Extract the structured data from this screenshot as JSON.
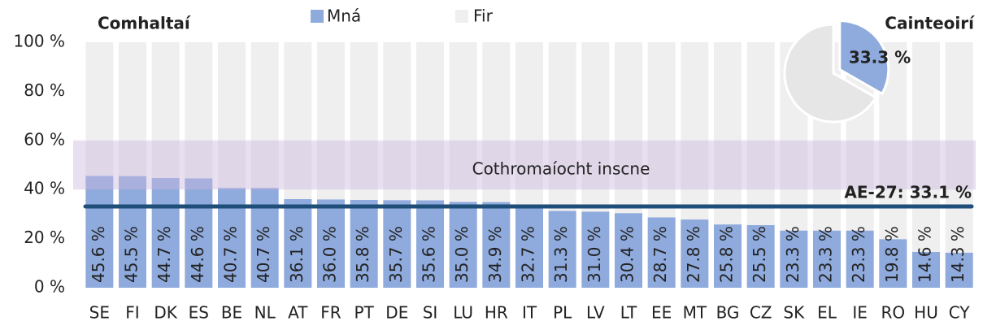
{
  "chart_data": [
    {
      "type": "bar",
      "stacked": true,
      "title": "Comhaltaí",
      "categories": [
        "SE",
        "FI",
        "DK",
        "ES",
        "BE",
        "NL",
        "AT",
        "FR",
        "PT",
        "DE",
        "SI",
        "LU",
        "HR",
        "IT",
        "PL",
        "LV",
        "LT",
        "EE",
        "MT",
        "BG",
        "CZ",
        "SK",
        "EL",
        "IE",
        "RO",
        "HU",
        "CY"
      ],
      "series": [
        {
          "name": "Mná",
          "color": "#8faadc",
          "values": [
            45.6,
            45.5,
            44.7,
            44.6,
            40.7,
            40.7,
            36.1,
            36.0,
            35.8,
            35.7,
            35.6,
            35.0,
            34.9,
            32.7,
            31.3,
            31.0,
            30.4,
            28.7,
            27.8,
            25.8,
            25.5,
            23.3,
            23.3,
            23.3,
            19.8,
            14.6,
            14.3
          ],
          "value_labels": [
            "45.6 %",
            "45.5 %",
            "44.7 %",
            "44.6 %",
            "40.7 %",
            "40.7 %",
            "36.1 %",
            "36.0 %",
            "35.8 %",
            "35.7 %",
            "35.6 %",
            "35.0 %",
            "34.9 %",
            "32.7 %",
            "31.3 %",
            "31.0 %",
            "30.4 %",
            "28.7 %",
            "27.8 %",
            "25.8 %",
            "25.5 %",
            "23.3 %",
            "23.3 %",
            "23.3 %",
            "19.8 %",
            "14.6 %",
            "14.3 %"
          ]
        },
        {
          "name": "Fir",
          "color": "#efefef",
          "values": [
            54.4,
            54.5,
            55.3,
            55.4,
            59.3,
            59.3,
            63.9,
            64.0,
            64.2,
            64.3,
            64.4,
            65.0,
            65.1,
            67.3,
            68.7,
            69.0,
            69.6,
            71.3,
            72.2,
            74.2,
            74.5,
            76.7,
            76.7,
            76.7,
            80.2,
            85.4,
            85.7
          ]
        }
      ],
      "ylim": [
        0,
        100
      ],
      "yticks": [
        {
          "value": 0,
          "label": "0 %"
        },
        {
          "value": 20,
          "label": "20 %"
        },
        {
          "value": 40,
          "label": "40 %"
        },
        {
          "value": 60,
          "label": "60 %"
        },
        {
          "value": 80,
          "label": "80 %"
        },
        {
          "value": 100,
          "label": "100 %"
        }
      ],
      "band": {
        "label": "Cothromaíocht inscne",
        "range": [
          40,
          60
        ]
      },
      "reference_line": {
        "label": "AE-27: 33.1 %",
        "value": 33.1,
        "color": "#1f4e79"
      }
    },
    {
      "type": "pie",
      "title": "Cainteoirí",
      "values": [
        33.3,
        66.7
      ],
      "colors": [
        "#8faadc",
        "#e6e6e6"
      ],
      "value_label": "33.3 %"
    }
  ]
}
